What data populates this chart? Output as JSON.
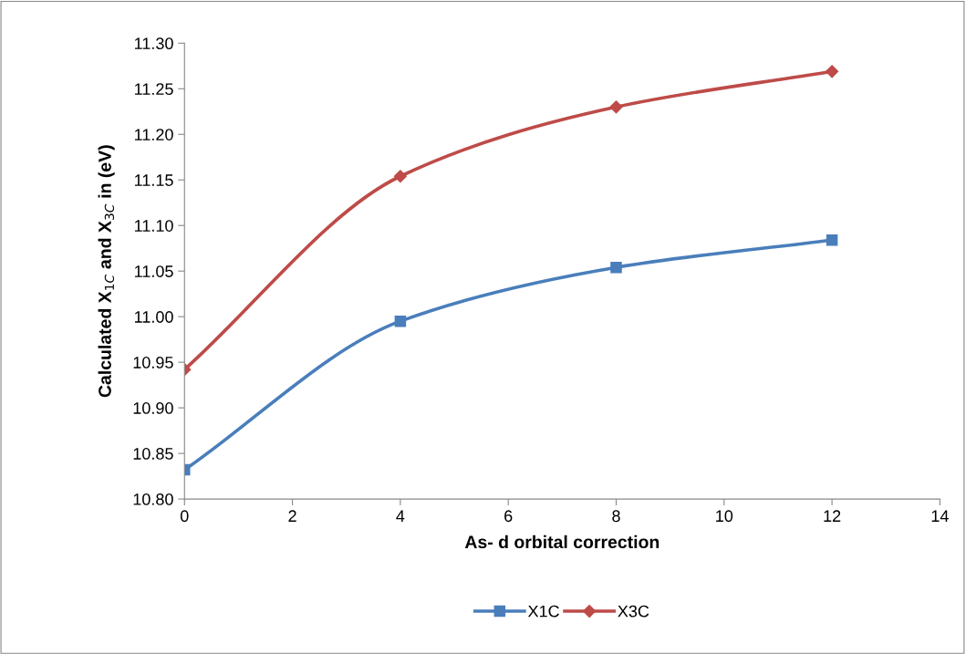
{
  "chart_data": {
    "type": "line",
    "xlabel": "As- d orbital correction",
    "ylabel": "Calculated X$_{1C}$ and X$_{3C}$ in (eV)",
    "x": [
      0,
      4,
      8,
      12
    ],
    "series": [
      {
        "name": "X1C",
        "color": "#4a7ebb",
        "marker": "square",
        "values": [
          10.832,
          10.995,
          11.054,
          11.084
        ]
      },
      {
        "name": "X3C",
        "color": "#be4b48",
        "marker": "diamond",
        "values": [
          10.942,
          11.154,
          11.23,
          11.269
        ]
      }
    ],
    "xlim": [
      0,
      14
    ],
    "xticks": [
      0,
      2,
      4,
      6,
      8,
      10,
      12,
      14
    ],
    "ylim": [
      10.8,
      11.3
    ],
    "yticks": [
      {
        "value": 10.8,
        "label": "10.80"
      },
      {
        "value": 10.85,
        "label": "10.85"
      },
      {
        "value": 10.9,
        "label": "10.90"
      },
      {
        "value": 10.95,
        "label": "10.95"
      },
      {
        "value": 11.0,
        "label": "11.00"
      },
      {
        "value": 11.05,
        "label": "11.05"
      },
      {
        "value": 11.1,
        "label": "11.10"
      },
      {
        "value": 11.15,
        "label": "11.15"
      },
      {
        "value": 11.2,
        "label": "11.20"
      },
      {
        "value": 11.25,
        "label": "11.25"
      },
      {
        "value": 11.3,
        "label": "11.30"
      }
    ],
    "grid": false,
    "legend": "bottom",
    "line_style": "solid"
  }
}
